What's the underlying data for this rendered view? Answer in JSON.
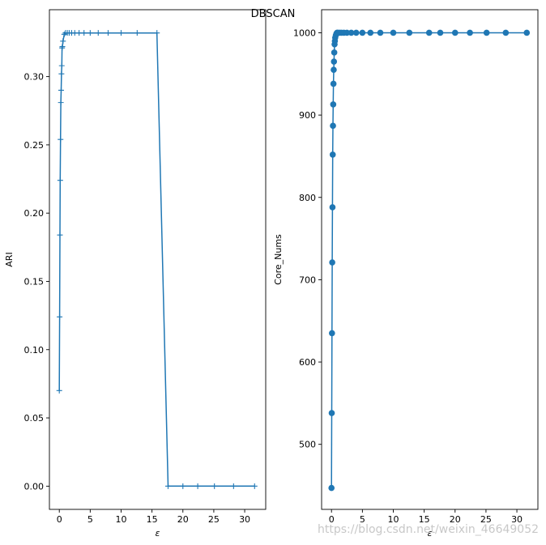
{
  "title": "DBSCAN",
  "watermark": "https://blog.csdn.net/weixin_46649052",
  "colors": {
    "series": "#1f77b4"
  },
  "chart_data": [
    {
      "type": "line",
      "marker": "plus",
      "xlabel": "ε",
      "ylabel": "ARI",
      "xlim": [
        -1.6,
        33.4
      ],
      "ylim": [
        -0.017,
        0.349
      ],
      "xticks": [
        0,
        5,
        10,
        15,
        20,
        25,
        30
      ],
      "yticks": [
        0.0,
        0.05,
        0.1,
        0.15,
        0.2,
        0.25,
        0.3
      ],
      "ytick_labels": [
        "0.00",
        "0.05",
        "0.10",
        "0.15",
        "0.20",
        "0.25",
        "0.30"
      ],
      "grid": false,
      "x": [
        0.0,
        0.05,
        0.1,
        0.15,
        0.2,
        0.25,
        0.3,
        0.35,
        0.4,
        0.45,
        0.5,
        0.6,
        0.8,
        1.0,
        1.3,
        1.6,
        2.0,
        2.5,
        3.2,
        4.0,
        5.0,
        6.3,
        7.9,
        10.0,
        12.6,
        15.8,
        17.6,
        20.0,
        22.4,
        25.1,
        28.2,
        31.6
      ],
      "y": [
        0.07,
        0.124,
        0.184,
        0.224,
        0.254,
        0.281,
        0.29,
        0.302,
        0.308,
        0.321,
        0.322,
        0.326,
        0.331,
        0.332,
        0.332,
        0.332,
        0.332,
        0.332,
        0.332,
        0.332,
        0.332,
        0.332,
        0.332,
        0.332,
        0.332,
        0.332,
        0.0,
        0.0,
        0.0,
        0.0,
        0.0,
        0.0
      ]
    },
    {
      "type": "line",
      "marker": "circle",
      "xlabel": "ε",
      "ylabel": "Core_Nums",
      "xlim": [
        -1.6,
        33.4
      ],
      "ylim": [
        421,
        1028
      ],
      "xticks": [
        0,
        5,
        10,
        15,
        20,
        25,
        30
      ],
      "yticks": [
        500,
        600,
        700,
        800,
        900,
        1000
      ],
      "ytick_labels": [
        "500",
        "600",
        "700",
        "800",
        "900",
        "1000"
      ],
      "grid": false,
      "x": [
        0.0,
        0.04,
        0.08,
        0.12,
        0.16,
        0.2,
        0.24,
        0.28,
        0.32,
        0.36,
        0.4,
        0.45,
        0.5,
        0.55,
        0.6,
        0.7,
        0.8,
        0.9,
        1.0,
        1.3,
        1.6,
        2.0,
        2.5,
        3.2,
        4.0,
        5.0,
        6.3,
        7.9,
        10.0,
        12.6,
        15.8,
        17.6,
        20.0,
        22.4,
        25.1,
        28.2,
        31.6
      ],
      "y": [
        447,
        538,
        635,
        721,
        788,
        852,
        887,
        913,
        938,
        955,
        965,
        976,
        986,
        990,
        994,
        997,
        999,
        1000,
        1000,
        1000,
        1000,
        1000,
        1000,
        1000,
        1000,
        1000,
        1000,
        1000,
        1000,
        1000,
        1000,
        1000,
        1000,
        1000,
        1000,
        1000,
        1000
      ]
    }
  ]
}
